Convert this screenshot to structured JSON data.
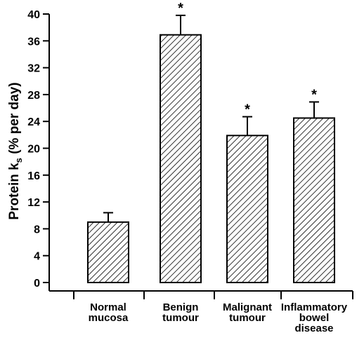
{
  "chart_data": {
    "type": "bar",
    "title": "",
    "xlabel": "",
    "ylabel": "Protein k",
    "ylabel_subscript": "s",
    "ylabel_suffix": " (% per day)",
    "ylim": [
      0,
      40
    ],
    "yticks": [
      0,
      4,
      8,
      12,
      16,
      20,
      24,
      28,
      32,
      36,
      40
    ],
    "categories": [
      [
        "Normal",
        "mucosa"
      ],
      [
        "Benign",
        "tumour"
      ],
      [
        "Malignant",
        "tumour"
      ],
      [
        "Inflammatory",
        "bowel",
        "disease"
      ]
    ],
    "values": [
      9.0,
      36.9,
      21.9,
      24.5
    ],
    "errors": [
      1.4,
      2.9,
      2.8,
      2.4
    ],
    "significance": [
      "",
      "*",
      "*",
      "*"
    ],
    "bar_fill": "diagonal-hatch",
    "colors": {
      "bar_stroke": "#000000",
      "hatch": "#000000",
      "background": "#ffffff"
    }
  }
}
